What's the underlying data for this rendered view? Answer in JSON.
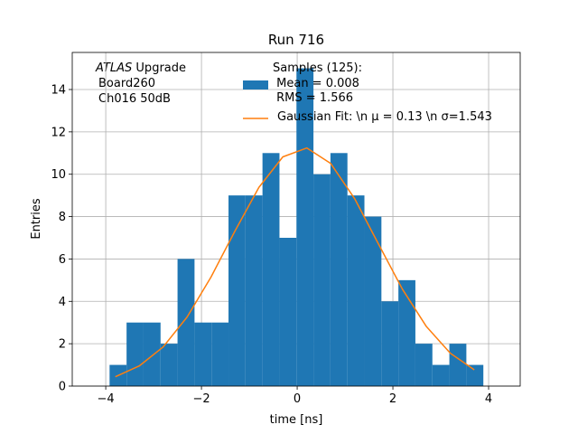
{
  "chart_data": {
    "type": "histogram",
    "title": "Run 716",
    "xlabel": "time [ns]",
    "ylabel": "Entries",
    "annotation": {
      "italic": "ATLAS",
      "first": "Upgrade",
      "lines": [
        "Board260",
        "Ch016 50dB"
      ]
    },
    "bins": [
      -3.92,
      -3.565,
      -3.21,
      -2.855,
      -2.5,
      -2.145,
      -1.79,
      -1.435,
      -1.08,
      -0.725,
      -0.37,
      -0.015,
      0.34,
      0.695,
      1.05,
      1.405,
      1.76,
      2.115,
      2.47,
      2.825,
      3.18,
      3.535,
      3.89
    ],
    "series": [
      {
        "name": "Samples (125):\n Mean = 0.008\n RMS = 1.566",
        "color": "#1f77b4",
        "values": [
          1,
          3,
          3,
          2,
          6,
          3,
          3,
          9,
          9,
          11,
          7,
          15,
          10,
          11,
          9,
          8,
          4,
          5,
          2,
          1,
          2,
          1
        ]
      },
      {
        "name": "Gaussian Fit: \\n μ = 0.13 \\n σ=1.543",
        "color": "#ff7f0e",
        "type": "line",
        "x": [
          -3.8,
          -3.3,
          -2.8,
          -2.3,
          -1.8,
          -1.3,
          -0.8,
          -0.3,
          0.2,
          0.7,
          1.2,
          1.7,
          2.2,
          2.7,
          3.2,
          3.7
        ],
        "values": [
          0.44,
          0.95,
          1.85,
          3.26,
          5.15,
          7.32,
          9.38,
          10.82,
          11.24,
          10.51,
          8.85,
          6.7,
          4.57,
          2.81,
          1.55,
          0.77
        ]
      }
    ],
    "xlim": [
      -4.7,
      4.66
    ],
    "ylim": [
      0,
      15.75
    ],
    "xticks": [
      {
        "value": -4,
        "label": "−4"
      },
      {
        "value": -2,
        "label": "−2"
      },
      0,
      2,
      4
    ],
    "yticks": [
      0,
      2,
      4,
      6,
      8,
      10,
      12,
      14
    ],
    "grid": true,
    "legend": "upper center"
  }
}
